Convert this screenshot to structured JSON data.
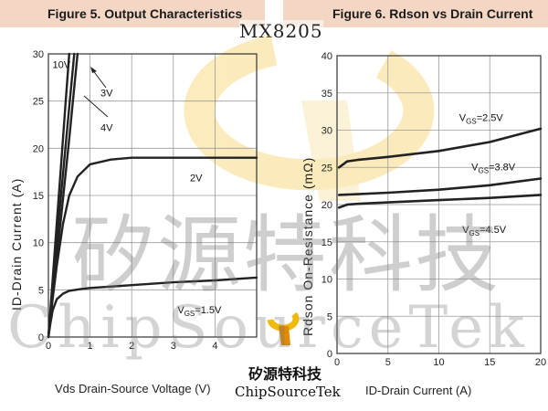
{
  "part_number": "MX8205",
  "brand": {
    "name_zh": "矽源特科技",
    "name_en": "ChipSourceTek"
  },
  "watermark": {
    "text_zh": "矽源特科技",
    "text_en": "ChipSourceTek"
  },
  "chart_data": [
    {
      "type": "line",
      "title": "Figure 5. Output Characteristics",
      "xlabel": "Vds Drain-Source Voltage (V)",
      "ylabel": "ID-Drain Current (A)",
      "xlim": [
        0,
        5
      ],
      "ylim": [
        0,
        30
      ],
      "xticks": [
        "0",
        "1",
        "2",
        "3",
        "4"
      ],
      "yticks": [
        "0",
        "5",
        "10",
        "15",
        "20",
        "25",
        "30"
      ],
      "grid": true,
      "series": [
        {
          "name": "10V",
          "x": [
            0,
            0.1,
            0.2,
            0.3,
            0.4,
            0.5
          ],
          "y": [
            0,
            6,
            12,
            18,
            24,
            30
          ]
        },
        {
          "name": "4V",
          "x": [
            0,
            0.14,
            0.3,
            0.5,
            0.7
          ],
          "y": [
            0,
            6,
            12.5,
            21,
            30
          ]
        },
        {
          "name": "3V",
          "x": [
            0,
            0.12,
            0.25,
            0.45,
            0.62
          ],
          "y": [
            0,
            6,
            12.5,
            22,
            30
          ]
        },
        {
          "name": "2V",
          "x": [
            0,
            0.1,
            0.2,
            0.35,
            0.5,
            0.7,
            1.0,
            1.5,
            2.0,
            3.0,
            4.0,
            5.0
          ],
          "y": [
            0,
            4,
            7.5,
            12,
            15,
            17,
            18.3,
            18.8,
            19.0,
            19.0,
            19.0,
            19.0
          ]
        },
        {
          "name": "VGS=1.5V",
          "x": [
            0,
            0.05,
            0.1,
            0.2,
            0.35,
            0.5,
            0.8,
            1.0,
            2.0,
            3.0,
            4.0,
            5.0
          ],
          "y": [
            0,
            1.5,
            2.8,
            4.0,
            4.6,
            4.9,
            5.1,
            5.2,
            5.5,
            5.8,
            6.0,
            6.3
          ]
        }
      ],
      "labels": [
        {
          "text": "10V",
          "x": 0.1,
          "y": 28.5
        },
        {
          "text": "3V",
          "x": 1.25,
          "y": 25.5
        },
        {
          "text": "4V",
          "x": 1.25,
          "y": 21.8
        },
        {
          "text": "2V",
          "x": 3.4,
          "y": 16.5
        },
        {
          "text": "V",
          "sub": "GS",
          "suffix": "=1.5V",
          "x": 3.1,
          "y": 2.5
        }
      ]
    },
    {
      "type": "line",
      "title": "Figure 6. Rdson vs Drain Current",
      "xlabel": "ID-Drain Current (A)",
      "ylabel": "Rdson On-Resistance (mΩ)",
      "xlim": [
        0,
        20
      ],
      "ylim": [
        0,
        40
      ],
      "xticks": [
        "0",
        "5",
        "10",
        "15",
        "20"
      ],
      "yticks": [
        "0",
        "5",
        "10",
        "15",
        "20",
        "25",
        "30",
        "35",
        "40"
      ],
      "grid": true,
      "series": [
        {
          "name": "VGS=2.5V",
          "x": [
            0.2,
            1,
            2,
            5,
            10,
            15,
            20
          ],
          "y": [
            25.0,
            25.8,
            26.0,
            26.4,
            27.2,
            28.4,
            30.2
          ]
        },
        {
          "name": "VGS=3.8V",
          "x": [
            0.2,
            2,
            5,
            10,
            15,
            20
          ],
          "y": [
            21.3,
            21.4,
            21.6,
            22.0,
            22.6,
            23.5
          ]
        },
        {
          "name": "VGS=4.5V",
          "x": [
            0.2,
            1,
            2,
            5,
            10,
            15,
            20
          ],
          "y": [
            19.6,
            20.0,
            20.1,
            20.3,
            20.6,
            20.9,
            21.3
          ]
        }
      ],
      "labels": [
        {
          "text": "V",
          "sub": "GS",
          "suffix": "=2.5V",
          "x": 12.0,
          "y": 31.2
        },
        {
          "text": "V",
          "sub": "GS",
          "suffix": "=3.8V",
          "x": 13.2,
          "y": 24.6
        },
        {
          "text": "V",
          "sub": "GS",
          "suffix": "=4.5V",
          "x": 12.3,
          "y": 16.2
        }
      ]
    }
  ]
}
